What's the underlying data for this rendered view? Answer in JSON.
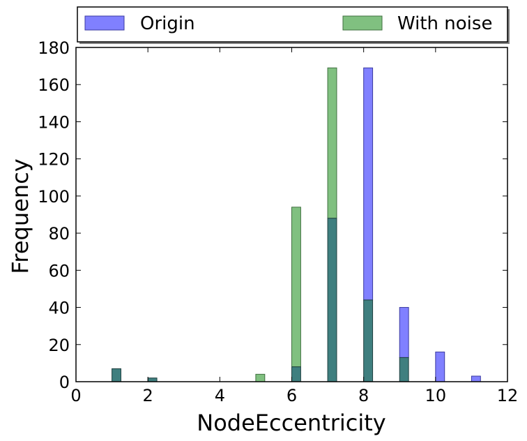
{
  "chart_data": {
    "type": "bar",
    "xlabel": "NodeEccentricity",
    "ylabel": "Frequency",
    "xlim": [
      0,
      12
    ],
    "ylim": [
      0,
      180
    ],
    "xticks": [
      "0",
      "2",
      "4",
      "6",
      "8",
      "10",
      "12"
    ],
    "yticks": [
      "0",
      "20",
      "40",
      "60",
      "80",
      "100",
      "120",
      "140",
      "160",
      "180"
    ],
    "grid": false,
    "legend_position": "top, above plot",
    "series": [
      {
        "name": "Origin",
        "color": "#8080ff",
        "edge": "#3a3aa0",
        "points": [
          {
            "x": 1,
            "y": 7
          },
          {
            "x": 2,
            "y": 2
          },
          {
            "x": 6,
            "y": 8
          },
          {
            "x": 7,
            "y": 88
          },
          {
            "x": 8,
            "y": 169
          },
          {
            "x": 9,
            "y": 40
          },
          {
            "x": 10,
            "y": 16
          },
          {
            "x": 11,
            "y": 3
          }
        ]
      },
      {
        "name": "With noise",
        "color": "#80c080",
        "edge": "#3f6f3f",
        "points": [
          {
            "x": 1,
            "y": 7
          },
          {
            "x": 2,
            "y": 2
          },
          {
            "x": 5,
            "y": 4
          },
          {
            "x": 6,
            "y": 94
          },
          {
            "x": 7,
            "y": 169
          },
          {
            "x": 8,
            "y": 44
          },
          {
            "x": 9,
            "y": 13
          }
        ]
      }
    ],
    "overlap_color": "#3f7f7f"
  }
}
